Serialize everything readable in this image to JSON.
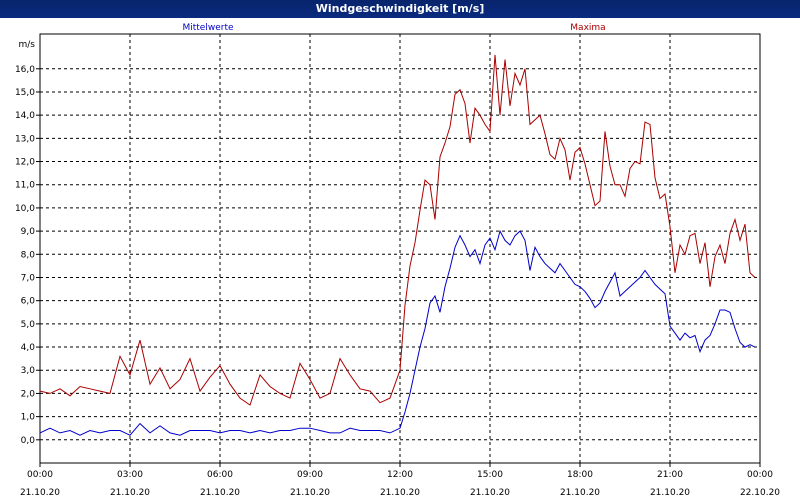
{
  "window": {
    "title": "Windgeschwindigkeit [m/s]"
  },
  "chart_data": {
    "type": "line",
    "title": "Windgeschwindigkeit [m/s]",
    "ylabel": "m/s",
    "xlabel": "",
    "ylim": [
      -1,
      17.5
    ],
    "xlim": [
      "21.10.20 00:00",
      "22.10.20 00:00"
    ],
    "grid": true,
    "y_ticks": [
      "0,0",
      "1,0",
      "2,0",
      "3,0",
      "4,0",
      "5,0",
      "6,0",
      "7,0",
      "8,0",
      "9,0",
      "10,0",
      "11,0",
      "12,0",
      "13,0",
      "14,0",
      "15,0",
      "16,0"
    ],
    "x_ticks": [
      {
        "time": "00:00",
        "date": "21.10.20"
      },
      {
        "time": "03:00",
        "date": "21.10.20"
      },
      {
        "time": "06:00",
        "date": "21.10.20"
      },
      {
        "time": "09:00",
        "date": "21.10.20"
      },
      {
        "time": "12:00",
        "date": "21.10.20"
      },
      {
        "time": "15:00",
        "date": "21.10.20"
      },
      {
        "time": "18:00",
        "date": "21.10.20"
      },
      {
        "time": "21:00",
        "date": "21.10.20"
      },
      {
        "time": "00:00",
        "date": "22.10.20"
      }
    ],
    "series": [
      {
        "name": "Mittelwerte",
        "color": "#0000cc",
        "x": [
          "00:00",
          "00:20",
          "00:40",
          "01:00",
          "01:20",
          "01:40",
          "02:00",
          "02:20",
          "02:40",
          "03:00",
          "03:20",
          "03:40",
          "04:00",
          "04:20",
          "04:40",
          "05:00",
          "05:20",
          "05:40",
          "06:00",
          "06:20",
          "06:40",
          "07:00",
          "07:20",
          "07:40",
          "08:00",
          "08:20",
          "08:40",
          "09:00",
          "09:20",
          "09:40",
          "10:00",
          "10:20",
          "10:40",
          "11:00",
          "11:20",
          "11:40",
          "12:00",
          "12:10",
          "12:20",
          "12:30",
          "12:40",
          "12:50",
          "13:00",
          "13:10",
          "13:20",
          "13:30",
          "13:40",
          "13:50",
          "14:00",
          "14:10",
          "14:20",
          "14:30",
          "14:40",
          "14:50",
          "15:00",
          "15:10",
          "15:20",
          "15:30",
          "15:40",
          "15:50",
          "16:00",
          "16:10",
          "16:20",
          "16:30",
          "16:40",
          "16:50",
          "17:00",
          "17:10",
          "17:20",
          "17:30",
          "17:40",
          "17:50",
          "18:00",
          "18:10",
          "18:20",
          "18:30",
          "18:40",
          "18:50",
          "19:00",
          "19:10",
          "19:20",
          "19:30",
          "19:40",
          "19:50",
          "20:00",
          "20:10",
          "20:20",
          "20:30",
          "20:40",
          "20:50",
          "21:00",
          "21:10",
          "21:20",
          "21:30",
          "21:40",
          "21:50",
          "22:00",
          "22:10",
          "22:20",
          "22:30",
          "22:40",
          "22:50",
          "23:00",
          "23:10",
          "23:20",
          "23:30",
          "23:40",
          "23:50"
        ],
        "values": [
          0.3,
          0.5,
          0.3,
          0.4,
          0.2,
          0.4,
          0.3,
          0.4,
          0.4,
          0.2,
          0.7,
          0.3,
          0.6,
          0.3,
          0.2,
          0.4,
          0.4,
          0.4,
          0.3,
          0.4,
          0.4,
          0.3,
          0.4,
          0.3,
          0.4,
          0.4,
          0.5,
          0.5,
          0.4,
          0.3,
          0.3,
          0.5,
          0.4,
          0.4,
          0.4,
          0.3,
          0.5,
          1.2,
          2.0,
          3.0,
          4.0,
          4.8,
          5.9,
          6.2,
          5.5,
          6.6,
          7.4,
          8.3,
          8.8,
          8.4,
          7.9,
          8.2,
          7.6,
          8.4,
          8.7,
          8.2,
          9.0,
          8.6,
          8.4,
          8.8,
          9.0,
          8.6,
          7.3,
          8.3,
          7.9,
          7.6,
          7.4,
          7.2,
          7.6,
          7.3,
          7.0,
          6.7,
          6.6,
          6.4,
          6.1,
          5.7,
          5.9,
          6.4,
          6.8,
          7.2,
          6.2,
          6.4,
          6.6,
          6.8,
          7.0,
          7.3,
          7.0,
          6.7,
          6.5,
          6.3,
          4.9,
          4.6,
          4.3,
          4.6,
          4.4,
          4.5,
          3.8,
          4.3,
          4.5,
          5.0,
          5.6,
          5.6,
          5.5,
          4.8,
          4.2,
          4.0,
          4.1,
          4.0
        ]
      },
      {
        "name": "Maxima",
        "color": "#aa0000",
        "x": [
          "00:00",
          "00:20",
          "00:40",
          "01:00",
          "01:20",
          "01:40",
          "02:00",
          "02:20",
          "02:40",
          "03:00",
          "03:20",
          "03:40",
          "04:00",
          "04:20",
          "04:40",
          "05:00",
          "05:20",
          "05:40",
          "06:00",
          "06:20",
          "06:40",
          "07:00",
          "07:20",
          "07:40",
          "08:00",
          "08:20",
          "08:40",
          "09:00",
          "09:20",
          "09:40",
          "10:00",
          "10:20",
          "10:40",
          "11:00",
          "11:20",
          "11:40",
          "12:00",
          "12:10",
          "12:20",
          "12:30",
          "12:40",
          "12:50",
          "13:00",
          "13:10",
          "13:20",
          "13:30",
          "13:40",
          "13:50",
          "14:00",
          "14:10",
          "14:20",
          "14:30",
          "14:40",
          "14:50",
          "15:00",
          "15:10",
          "15:20",
          "15:30",
          "15:40",
          "15:50",
          "16:00",
          "16:10",
          "16:20",
          "16:30",
          "16:40",
          "16:50",
          "17:00",
          "17:10",
          "17:20",
          "17:30",
          "17:40",
          "17:50",
          "18:00",
          "18:10",
          "18:20",
          "18:30",
          "18:40",
          "18:50",
          "19:00",
          "19:10",
          "19:20",
          "19:30",
          "19:40",
          "19:50",
          "20:00",
          "20:10",
          "20:20",
          "20:30",
          "20:40",
          "20:50",
          "21:00",
          "21:10",
          "21:20",
          "21:30",
          "21:40",
          "21:50",
          "22:00",
          "22:10",
          "22:20",
          "22:30",
          "22:40",
          "22:50",
          "23:00",
          "23:10",
          "23:20",
          "23:30",
          "23:40",
          "23:50"
        ],
        "values": [
          2.1,
          2.0,
          2.2,
          1.9,
          2.3,
          2.2,
          2.1,
          2.0,
          3.6,
          2.8,
          4.3,
          2.4,
          3.1,
          2.2,
          2.6,
          3.5,
          2.1,
          2.7,
          3.2,
          2.4,
          1.8,
          1.5,
          2.8,
          2.3,
          2.0,
          1.8,
          3.3,
          2.6,
          1.8,
          2.0,
          3.5,
          2.8,
          2.2,
          2.1,
          1.6,
          1.8,
          3.0,
          5.8,
          7.5,
          8.5,
          9.9,
          11.2,
          11.0,
          9.5,
          12.2,
          12.8,
          13.5,
          14.9,
          15.1,
          14.5,
          12.8,
          14.3,
          14.0,
          13.6,
          13.3,
          16.6,
          14.0,
          16.4,
          14.4,
          15.8,
          15.3,
          16.0,
          13.6,
          13.8,
          14.0,
          13.2,
          12.3,
          12.1,
          13.0,
          12.5,
          11.2,
          12.4,
          12.6,
          11.9,
          11.0,
          10.1,
          10.3,
          13.3,
          11.8,
          11.0,
          11.0,
          10.5,
          11.7,
          12.0,
          11.9,
          13.7,
          13.6,
          11.3,
          10.4,
          10.6,
          9.2,
          7.2,
          8.4,
          8.0,
          8.8,
          8.9,
          7.6,
          8.5,
          6.6,
          7.9,
          8.4,
          7.6,
          8.9,
          9.5,
          8.6,
          9.3,
          7.2,
          7.0
        ]
      }
    ]
  }
}
